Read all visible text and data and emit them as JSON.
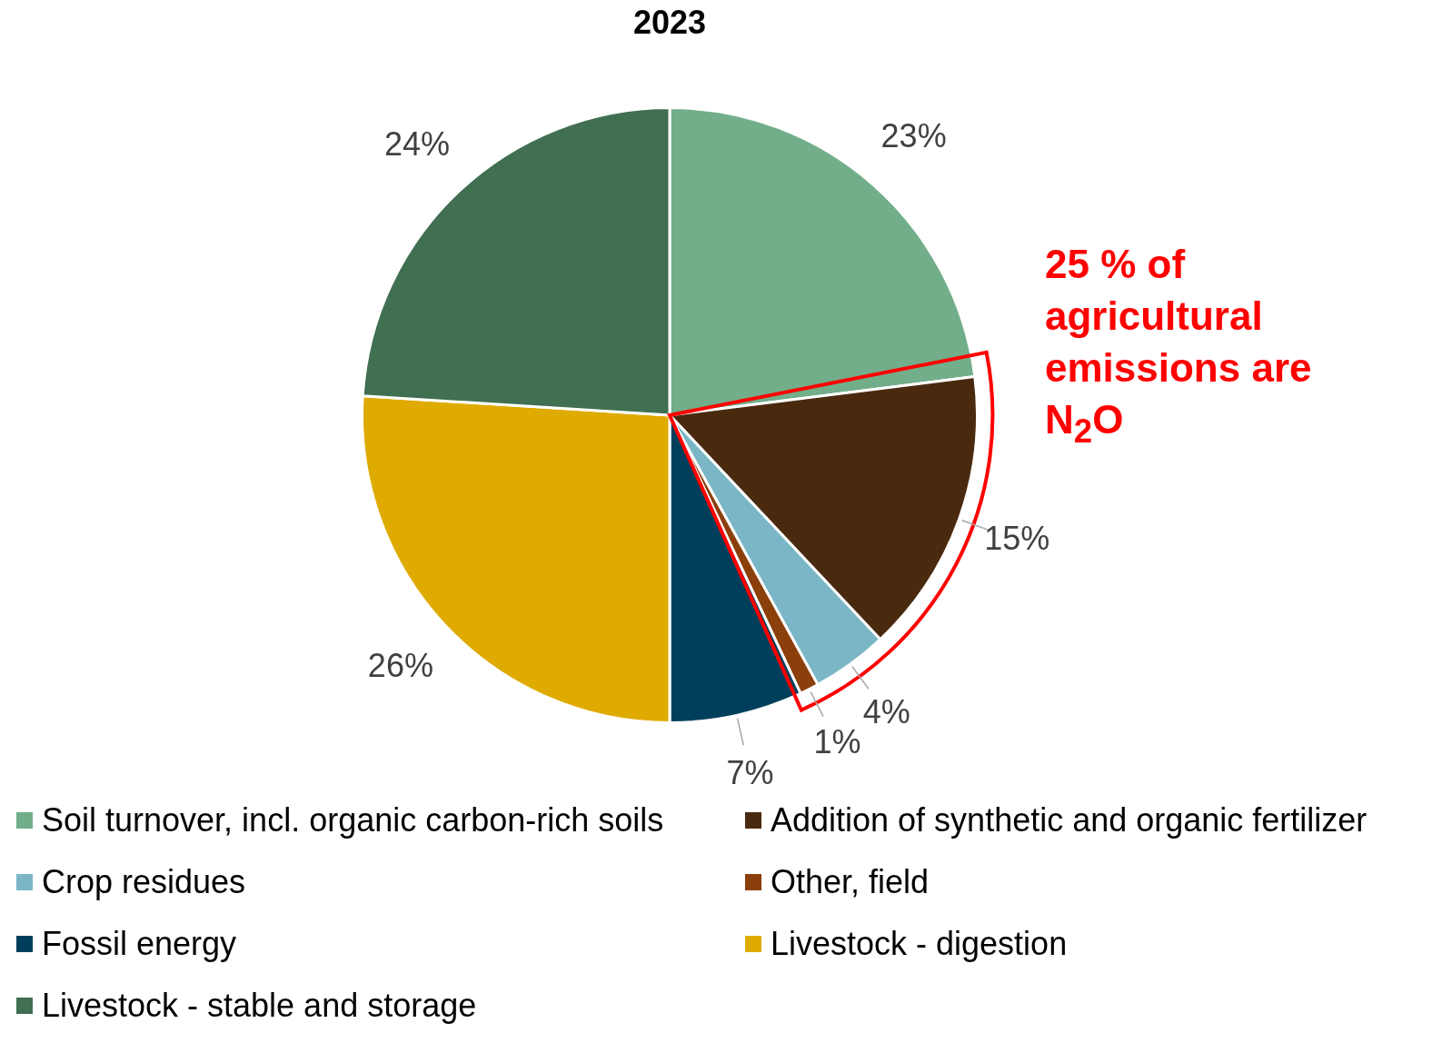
{
  "chart_data": {
    "type": "pie",
    "title": "2023",
    "categories": [
      "Soil turnover, incl. organic carbon-rich soils",
      "Addition of synthetic and organic fertilizer",
      "Crop residues",
      "Other, field",
      "Fossil energy",
      "Livestock - digestion",
      "Livestock - stable and storage"
    ],
    "values": [
      23,
      15,
      4,
      1,
      7,
      26,
      24
    ],
    "colors": [
      "#72ae8a",
      "#4a2a0f",
      "#7ab6c6",
      "#8b3f0a",
      "#003f5c",
      "#dfab00",
      "#406f51"
    ],
    "value_labels": [
      "23%",
      "15%",
      "4%",
      "1%",
      "7%",
      "26%",
      "24%"
    ],
    "legend": "bottom",
    "annotations": [
      "25 % of agricultural emissions are N$_{2}$O"
    ]
  }
}
